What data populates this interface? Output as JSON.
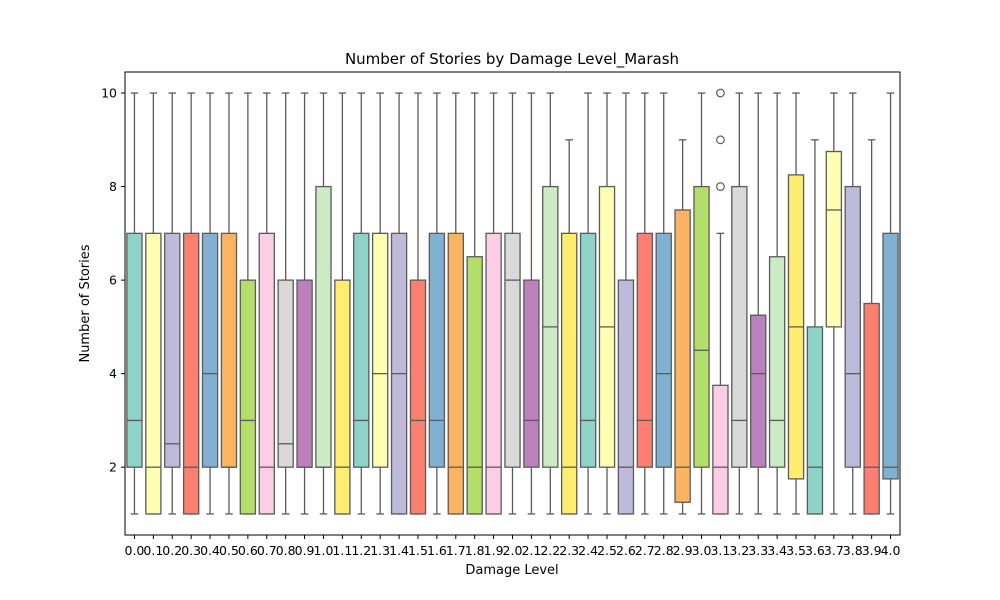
{
  "chart_data": {
    "type": "boxplot",
    "title": "Number of Stories by Damage Level_Marash",
    "xlabel": "Damage Level",
    "ylabel": "Number of Stories",
    "ylim": [
      0.55,
      10.45
    ],
    "yticks": [
      2,
      4,
      6,
      8,
      10
    ],
    "grid": false,
    "legend": "none",
    "categories": [
      "0.0",
      "0.1",
      "0.2",
      "0.3",
      "0.4",
      "0.5",
      "0.6",
      "0.7",
      "0.8",
      "0.9",
      "1.0",
      "1.1",
      "1.2",
      "1.3",
      "1.4",
      "1.5",
      "1.6",
      "1.7",
      "1.8",
      "1.9",
      "2.0",
      "2.1",
      "2.2",
      "2.3",
      "2.4",
      "2.5",
      "2.6",
      "2.7",
      "2.8",
      "2.9",
      "3.0",
      "3.1",
      "3.2",
      "3.3",
      "3.4",
      "3.5",
      "3.6",
      "3.7",
      "3.8",
      "3.9",
      "4.0"
    ],
    "boxes": [
      {
        "whislo": 1,
        "q1": 2,
        "med": 3,
        "q3": 7,
        "whishi": 10,
        "fliers": [],
        "color": "#8dd3c7"
      },
      {
        "whislo": 1,
        "q1": 1,
        "med": 2,
        "q3": 7,
        "whishi": 10,
        "fliers": [],
        "color": "#ffffb3"
      },
      {
        "whislo": 1,
        "q1": 2,
        "med": 2.5,
        "q3": 7,
        "whishi": 10,
        "fliers": [],
        "color": "#bebada"
      },
      {
        "whislo": 1,
        "q1": 1,
        "med": 2,
        "q3": 7,
        "whishi": 10,
        "fliers": [],
        "color": "#fb8072"
      },
      {
        "whislo": 1,
        "q1": 2,
        "med": 4,
        "q3": 7,
        "whishi": 10,
        "fliers": [],
        "color": "#80b1d3"
      },
      {
        "whislo": 1,
        "q1": 2,
        "med": 2,
        "q3": 7,
        "whishi": 10,
        "fliers": [],
        "color": "#fdb462"
      },
      {
        "whislo": 1,
        "q1": 1,
        "med": 3,
        "q3": 6,
        "whishi": 10,
        "fliers": [],
        "color": "#b3de69"
      },
      {
        "whislo": 1,
        "q1": 1,
        "med": 2,
        "q3": 7,
        "whishi": 10,
        "fliers": [],
        "color": "#fccde5"
      },
      {
        "whislo": 1,
        "q1": 2,
        "med": 2.5,
        "q3": 6,
        "whishi": 10,
        "fliers": [],
        "color": "#d9d9d9"
      },
      {
        "whislo": 1,
        "q1": 2,
        "med": 2,
        "q3": 6,
        "whishi": 10,
        "fliers": [],
        "color": "#bc80bd"
      },
      {
        "whislo": 1,
        "q1": 2,
        "med": 2,
        "q3": 8,
        "whishi": 10,
        "fliers": [],
        "color": "#ccebc5"
      },
      {
        "whislo": 1,
        "q1": 1,
        "med": 2,
        "q3": 6,
        "whishi": 10,
        "fliers": [],
        "color": "#ffed6f"
      },
      {
        "whislo": 1,
        "q1": 2,
        "med": 3,
        "q3": 7,
        "whishi": 10,
        "fliers": [],
        "color": "#8dd3c7"
      },
      {
        "whislo": 1,
        "q1": 2,
        "med": 4,
        "q3": 7,
        "whishi": 10,
        "fliers": [],
        "color": "#ffffb3"
      },
      {
        "whislo": 1,
        "q1": 1,
        "med": 4,
        "q3": 7,
        "whishi": 10,
        "fliers": [],
        "color": "#bebada"
      },
      {
        "whislo": 1,
        "q1": 1,
        "med": 3,
        "q3": 6,
        "whishi": 10,
        "fliers": [],
        "color": "#fb8072"
      },
      {
        "whislo": 1,
        "q1": 2,
        "med": 3,
        "q3": 7,
        "whishi": 10,
        "fliers": [],
        "color": "#80b1d3"
      },
      {
        "whislo": 1,
        "q1": 1,
        "med": 2,
        "q3": 7,
        "whishi": 10,
        "fliers": [],
        "color": "#fdb462"
      },
      {
        "whislo": 1,
        "q1": 1,
        "med": 2,
        "q3": 6.5,
        "whishi": 10,
        "fliers": [],
        "color": "#b3de69"
      },
      {
        "whislo": 1,
        "q1": 1,
        "med": 2,
        "q3": 7,
        "whishi": 10,
        "fliers": [],
        "color": "#fccde5"
      },
      {
        "whislo": 1,
        "q1": 2,
        "med": 6,
        "q3": 7,
        "whishi": 10,
        "fliers": [],
        "color": "#d9d9d9"
      },
      {
        "whislo": 1,
        "q1": 2,
        "med": 3,
        "q3": 6,
        "whishi": 10,
        "fliers": [],
        "color": "#bc80bd"
      },
      {
        "whislo": 1,
        "q1": 2,
        "med": 5,
        "q3": 8,
        "whishi": 10,
        "fliers": [],
        "color": "#ccebc5"
      },
      {
        "whislo": 1,
        "q1": 1,
        "med": 2,
        "q3": 7,
        "whishi": 9,
        "fliers": [],
        "color": "#ffed6f"
      },
      {
        "whislo": 1,
        "q1": 2,
        "med": 3,
        "q3": 7,
        "whishi": 10,
        "fliers": [],
        "color": "#8dd3c7"
      },
      {
        "whislo": 1,
        "q1": 2,
        "med": 5,
        "q3": 8,
        "whishi": 10,
        "fliers": [],
        "color": "#ffffb3"
      },
      {
        "whislo": 1,
        "q1": 1,
        "med": 2,
        "q3": 6,
        "whishi": 10,
        "fliers": [],
        "color": "#bebada"
      },
      {
        "whislo": 1,
        "q1": 2,
        "med": 3,
        "q3": 7,
        "whishi": 10,
        "fliers": [],
        "color": "#fb8072"
      },
      {
        "whislo": 1,
        "q1": 2,
        "med": 4,
        "q3": 7,
        "whishi": 10,
        "fliers": [],
        "color": "#80b1d3"
      },
      {
        "whislo": 1,
        "q1": 1.25,
        "med": 2,
        "q3": 7.5,
        "whishi": 9,
        "fliers": [],
        "color": "#fdb462"
      },
      {
        "whislo": 1,
        "q1": 2,
        "med": 4.5,
        "q3": 8,
        "whishi": 10,
        "fliers": [],
        "color": "#b3de69"
      },
      {
        "whislo": 1,
        "q1": 1,
        "med": 2,
        "q3": 3.75,
        "whishi": 7,
        "fliers": [
          8,
          9,
          10
        ],
        "color": "#fccde5"
      },
      {
        "whislo": 1,
        "q1": 2,
        "med": 3,
        "q3": 8,
        "whishi": 10,
        "fliers": [],
        "color": "#d9d9d9"
      },
      {
        "whislo": 1,
        "q1": 2,
        "med": 4,
        "q3": 5.25,
        "whishi": 10,
        "fliers": [],
        "color": "#bc80bd"
      },
      {
        "whislo": 1,
        "q1": 2,
        "med": 3,
        "q3": 6.5,
        "whishi": 10,
        "fliers": [],
        "color": "#ccebc5"
      },
      {
        "whislo": 1,
        "q1": 1.75,
        "med": 5,
        "q3": 8.25,
        "whishi": 10,
        "fliers": [],
        "color": "#ffed6f"
      },
      {
        "whislo": 1,
        "q1": 1,
        "med": 2,
        "q3": 5,
        "whishi": 9,
        "fliers": [],
        "color": "#8dd3c7"
      },
      {
        "whislo": 1,
        "q1": 5,
        "med": 7.5,
        "q3": 8.75,
        "whishi": 10,
        "fliers": [],
        "color": "#ffffb3"
      },
      {
        "whislo": 1,
        "q1": 2,
        "med": 4,
        "q3": 8,
        "whishi": 10,
        "fliers": [],
        "color": "#bebada"
      },
      {
        "whislo": 1,
        "q1": 1,
        "med": 2,
        "q3": 5.5,
        "whishi": 9,
        "fliers": [],
        "color": "#fb8072"
      },
      {
        "whislo": 1,
        "q1": 1.75,
        "med": 2,
        "q3": 7,
        "whishi": 10,
        "fliers": [],
        "color": "#80b1d3"
      }
    ],
    "line_color": "#5b5b5b",
    "frame_color": "#000000"
  }
}
